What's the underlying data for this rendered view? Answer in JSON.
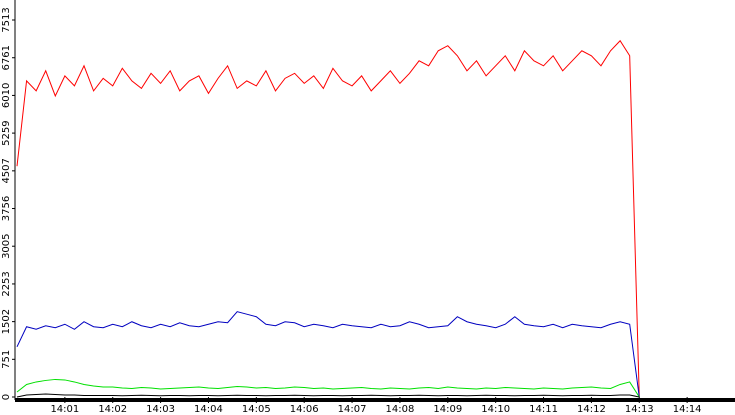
{
  "chart_data": {
    "type": "line",
    "x": [
      0,
      0.2,
      0.4,
      0.6,
      0.8,
      1,
      1.2,
      1.4,
      1.6,
      1.8,
      2,
      2.2,
      2.4,
      2.6,
      2.8,
      3,
      3.2,
      3.4,
      3.6,
      3.8,
      4,
      4.2,
      4.4,
      4.6,
      4.8,
      5,
      5.2,
      5.4,
      5.6,
      5.8,
      6,
      6.2,
      6.4,
      6.6,
      6.8,
      7,
      7.2,
      7.4,
      7.6,
      7.8,
      8,
      8.2,
      8.4,
      8.6,
      8.8,
      9,
      9.2,
      9.4,
      9.6,
      9.8,
      10,
      10.2,
      10.4,
      10.6,
      10.8,
      11,
      11.2,
      11.4,
      11.6,
      11.8,
      12,
      12.2,
      12.4,
      12.6,
      12.8,
      13
    ],
    "series": [
      {
        "color": "#ff0000",
        "values": [
          4600,
          6300,
          6100,
          6500,
          6000,
          6400,
          6200,
          6600,
          6100,
          6350,
          6200,
          6550,
          6300,
          6150,
          6450,
          6250,
          6500,
          6100,
          6300,
          6400,
          6050,
          6350,
          6600,
          6150,
          6300,
          6200,
          6500,
          6100,
          6350,
          6450,
          6250,
          6400,
          6150,
          6550,
          6300,
          6200,
          6400,
          6100,
          6300,
          6500,
          6250,
          6450,
          6700,
          6600,
          6900,
          7000,
          6800,
          6500,
          6700,
          6400,
          6600,
          6800,
          6500,
          6900,
          6700,
          6600,
          6800,
          6500,
          6700,
          6900,
          6800,
          6600,
          6900,
          7100,
          6800,
          0
        ]
      },
      {
        "color": "#0000c0",
        "values": [
          1000,
          1400,
          1350,
          1420,
          1380,
          1450,
          1350,
          1500,
          1400,
          1380,
          1450,
          1400,
          1500,
          1420,
          1380,
          1450,
          1400,
          1480,
          1420,
          1400,
          1450,
          1500,
          1480,
          1700,
          1650,
          1600,
          1450,
          1420,
          1500,
          1480,
          1400,
          1450,
          1420,
          1380,
          1450,
          1420,
          1400,
          1380,
          1450,
          1400,
          1420,
          1500,
          1450,
          1380,
          1400,
          1420,
          1600,
          1500,
          1450,
          1420,
          1380,
          1450,
          1600,
          1450,
          1420,
          1400,
          1450,
          1380,
          1450,
          1420,
          1400,
          1380,
          1450,
          1500,
          1450,
          0
        ]
      },
      {
        "color": "#00e000",
        "values": [
          100,
          250,
          300,
          330,
          350,
          340,
          300,
          250,
          220,
          200,
          200,
          180,
          170,
          190,
          180,
          160,
          170,
          180,
          190,
          200,
          180,
          170,
          190,
          210,
          200,
          180,
          190,
          170,
          180,
          200,
          190,
          170,
          180,
          160,
          170,
          180,
          190,
          170,
          160,
          180,
          170,
          160,
          180,
          190,
          170,
          200,
          180,
          170,
          160,
          180,
          170,
          190,
          180,
          170,
          160,
          180,
          170,
          160,
          180,
          190,
          200,
          180,
          170,
          250,
          300,
          0
        ]
      },
      {
        "color": "#000000",
        "values": [
          0,
          40,
          50,
          60,
          50,
          40,
          40,
          30,
          30,
          30,
          30,
          25,
          30,
          35,
          30,
          25,
          30,
          30,
          25,
          30,
          30,
          25,
          30,
          35,
          30,
          30,
          25,
          30,
          30,
          35,
          30,
          25,
          30,
          30,
          25,
          30,
          30,
          35,
          30,
          25,
          30,
          30,
          35,
          30,
          25,
          30,
          30,
          25,
          30,
          35,
          30,
          30,
          25,
          30,
          30,
          35,
          30,
          25,
          30,
          30,
          35,
          30,
          30,
          40,
          40,
          0
        ]
      }
    ],
    "xlim": [
      0,
      15
    ],
    "xticks": [
      {
        "value": 1,
        "label": "14:01"
      },
      {
        "value": 2,
        "label": "14:02"
      },
      {
        "value": 3,
        "label": "14:03"
      },
      {
        "value": 4,
        "label": "14:04"
      },
      {
        "value": 5,
        "label": "14:05"
      },
      {
        "value": 6,
        "label": "14:06"
      },
      {
        "value": 7,
        "label": "14:07"
      },
      {
        "value": 8,
        "label": "14:08"
      },
      {
        "value": 9,
        "label": "14:09"
      },
      {
        "value": 10,
        "label": "14:10"
      },
      {
        "value": 11,
        "label": "14:11"
      },
      {
        "value": 12,
        "label": "14:12"
      },
      {
        "value": 13,
        "label": "14:13"
      },
      {
        "value": 14,
        "label": "14:14"
      }
    ],
    "ylim": [
      0,
      7513
    ],
    "yticks": [
      0,
      751,
      1502,
      2253,
      3005,
      3756,
      4507,
      5259,
      6010,
      6761,
      7513
    ]
  }
}
